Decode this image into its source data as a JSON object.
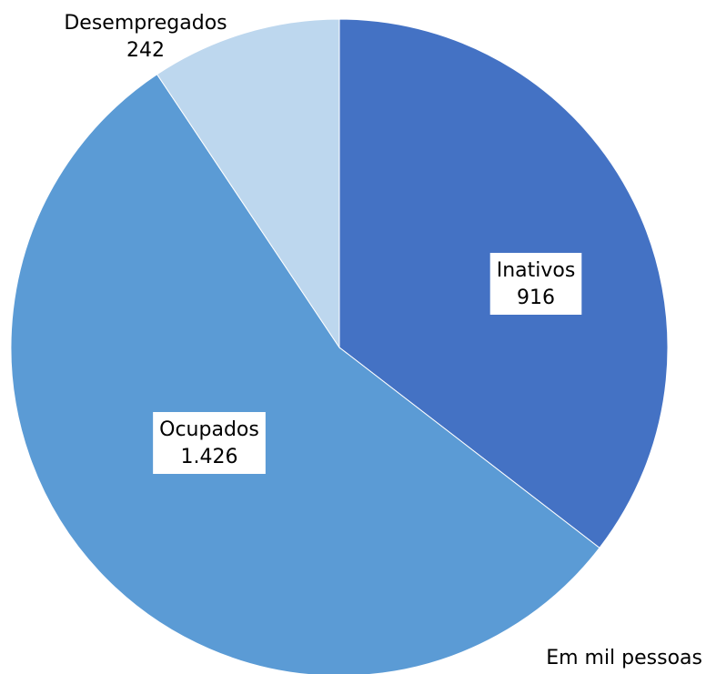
{
  "chart_data": {
    "type": "pie",
    "annotation": "Em mil pessoas",
    "categories": [
      "Inativos",
      "Ocupados",
      "Desempregados"
    ],
    "values": [
      916,
      1426,
      242
    ],
    "value_labels": [
      "916",
      "1.426",
      "242"
    ],
    "colors": [
      "#4472c4",
      "#5b9bd5",
      "#bdd7ee"
    ]
  }
}
